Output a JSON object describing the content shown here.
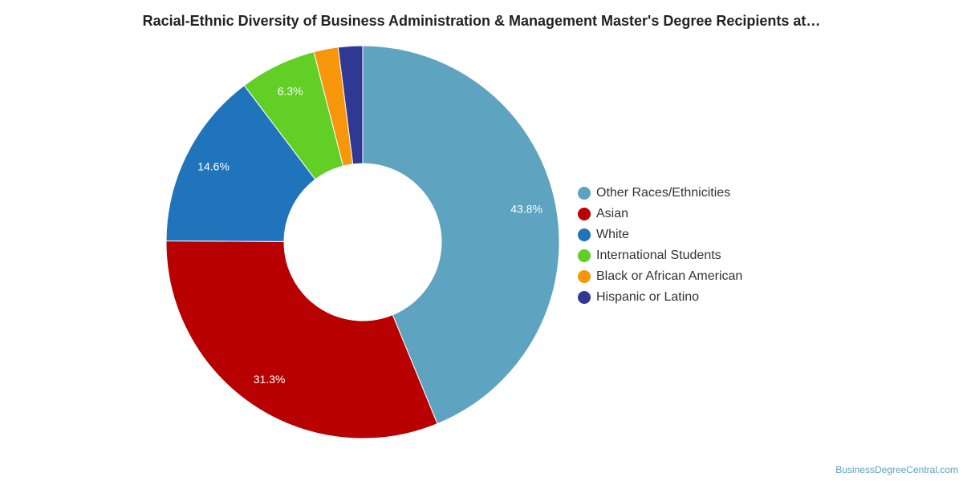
{
  "chart_data": {
    "type": "pie",
    "title": "Racial-Ethnic Diversity of Business Administration & Management Master's Degree Recipients at…",
    "categories": [
      "Other Races/Ethnicities",
      "Asian",
      "White",
      "International Students",
      "Black or African American",
      "Hispanic or Latino"
    ],
    "values": [
      43.8,
      31.3,
      14.6,
      6.3,
      2.0,
      2.0
    ],
    "data_labels": [
      "43.8%",
      "31.3%",
      "14.6%",
      "6.3%",
      "",
      ""
    ],
    "colors": [
      "#5ea3c0",
      "#b90000",
      "#1f74bb",
      "#62cf27",
      "#f7960a",
      "#2f3893"
    ],
    "donut": true,
    "legend_position": "right"
  },
  "watermark": "BusinessDegreeCentral.com"
}
